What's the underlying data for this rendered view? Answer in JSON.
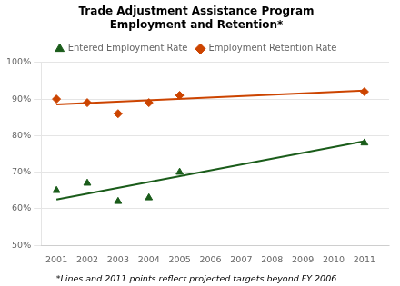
{
  "chart_data": {
    "type": "scatter",
    "title": "Trade Adjustment Assistance Program\nEmployment and Retention*",
    "annotations": [
      "*Lines and 2011 points reflect projected targets beyond FY 2006"
    ],
    "series": [
      {
        "name": "Entered Employment Rate",
        "color": "#1a5c1a",
        "marker": "triangle",
        "x": [
          2001,
          2002,
          2003,
          2004,
          2005,
          2011
        ],
        "values": [
          0.65,
          0.67,
          0.62,
          0.63,
          0.7,
          0.78
        ]
      },
      {
        "name": "Employment Retention Rate",
        "color": "#cc4400",
        "marker": "diamond",
        "x": [
          2001,
          2002,
          2003,
          2004,
          2005,
          2011
        ],
        "values": [
          0.9,
          0.89,
          0.86,
          0.89,
          0.91,
          0.92
        ]
      },
      {
        "type": "line",
        "color": "#1a5c1a",
        "x": [
          2001,
          2011
        ],
        "values": [
          0.625,
          0.785
        ]
      },
      {
        "type": "line",
        "color": "#cc4400",
        "x": [
          2001,
          2011
        ],
        "values": [
          0.885,
          0.923
        ]
      }
    ],
    "xlim": [
      2000.5,
      2011.8
    ],
    "xticks": [
      2001,
      2002,
      2003,
      2004,
      2005,
      2006,
      2007,
      2008,
      2009,
      2010,
      2011
    ],
    "ylim": [
      0.5,
      1.0
    ],
    "yticks": [
      {
        "value": 0.5,
        "label": "50%"
      },
      {
        "value": 0.6,
        "label": "60%"
      },
      {
        "value": 0.7,
        "label": "70%"
      },
      {
        "value": 0.8,
        "label": "80%"
      },
      {
        "value": 0.9,
        "label": "90%"
      },
      {
        "value": 1.0,
        "label": "100%"
      }
    ],
    "grid": "y",
    "legend": "top"
  }
}
